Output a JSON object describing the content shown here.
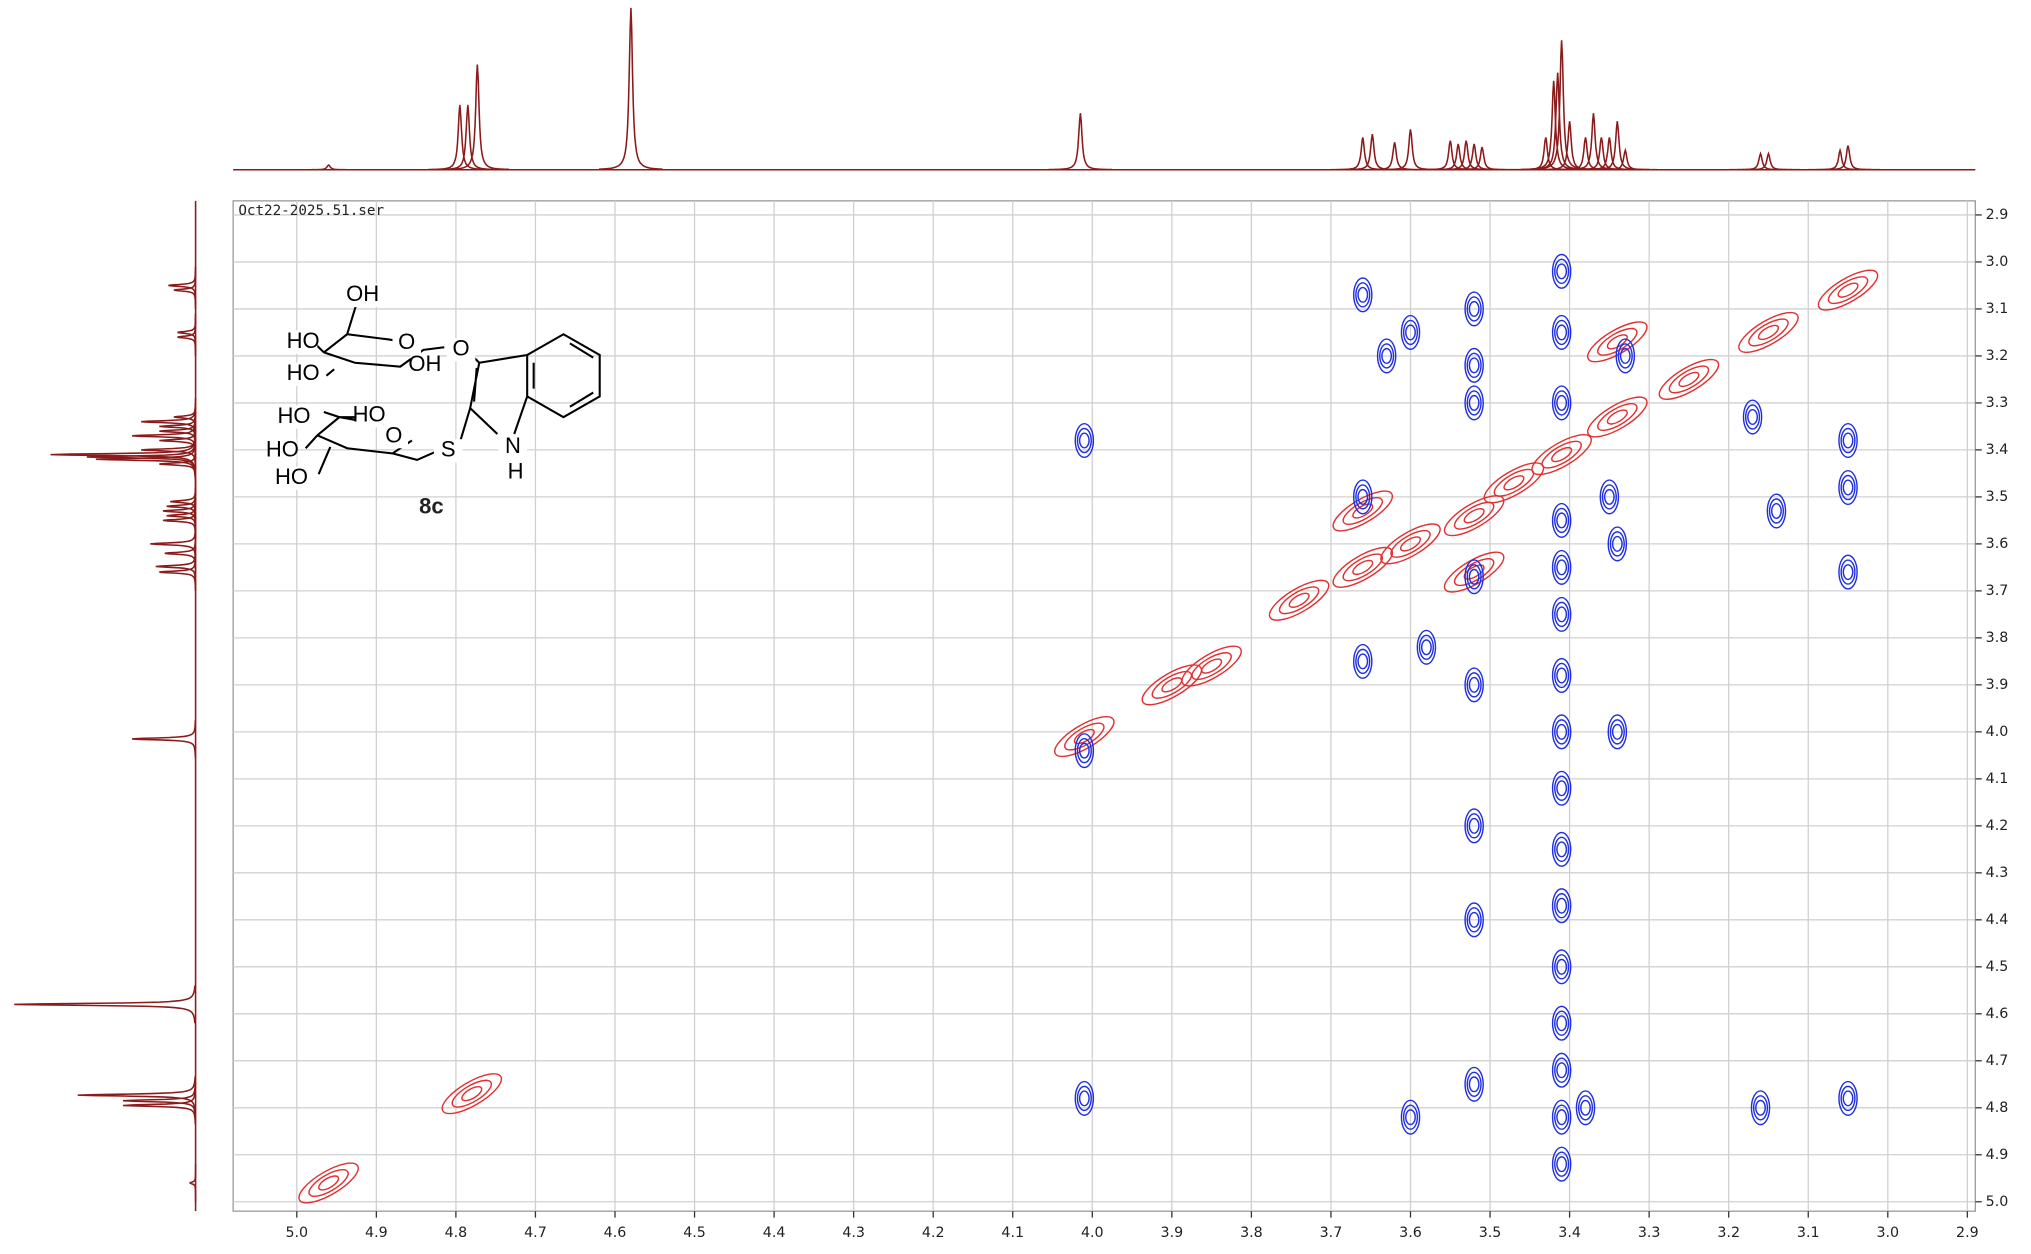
{
  "chart_data": {
    "type": "contour",
    "title": "Oct22-2025.51.ser",
    "xlim": [
      5.08,
      2.89
    ],
    "ylim": [
      2.87,
      5.02
    ],
    "xticks": [
      {
        "value": 5,
        "label": "5.0"
      },
      4.9,
      4.8,
      4.7,
      4.6,
      4.5,
      4.4,
      4.3,
      4.2,
      4.1,
      {
        "value": 4,
        "label": "4.0"
      },
      3.9,
      3.8,
      3.7,
      3.6,
      3.5,
      3.4,
      3.3,
      3.2,
      3.1,
      {
        "value": 3,
        "label": "3.0"
      },
      2.9
    ],
    "yticks": [
      2.9,
      {
        "value": 3,
        "label": "3.0"
      },
      3.1,
      3.2,
      3.3,
      3.4,
      3.5,
      3.6,
      3.7,
      3.8,
      3.9,
      {
        "value": 4,
        "label": "4.0"
      },
      4.1,
      4.2,
      4.3,
      4.4,
      4.5,
      4.6,
      4.7,
      4.8,
      4.9,
      {
        "value": 5,
        "label": "5.0"
      }
    ],
    "grid": true,
    "series": [
      {
        "color": "#e03030",
        "x": [
          3.05,
          3.15,
          3.25,
          3.34,
          3.41,
          3.47,
          3.52,
          3.6,
          3.66,
          3.74,
          3.85,
          3.9,
          4.01,
          4.78,
          4.96,
          3.52,
          3.66,
          3.34
        ],
        "y": [
          3.06,
          3.15,
          3.25,
          3.33,
          3.41,
          3.47,
          3.54,
          3.6,
          3.65,
          3.72,
          3.86,
          3.9,
          4.01,
          4.77,
          4.96,
          3.66,
          3.53,
          3.17
        ]
      },
      {
        "color": "#2030e0",
        "x": [
          3.66,
          3.6,
          3.52,
          3.52,
          3.52,
          3.63,
          3.17,
          3.05,
          3.05,
          3.14,
          3.05,
          4.01,
          3.33,
          3.35,
          3.34,
          3.34,
          3.52,
          3.66,
          3.52,
          3.52,
          3.52,
          3.52,
          3.6,
          4.01,
          3.16,
          3.05,
          3.38,
          3.58,
          3.66,
          4.01,
          3.41,
          3.41,
          3.41,
          3.41,
          3.41,
          3.41,
          3.41,
          3.41,
          3.41,
          3.41,
          3.41,
          3.41,
          3.41,
          3.41,
          3.41,
          3.41
        ],
        "y": [
          3.07,
          3.15,
          3.1,
          3.22,
          3.3,
          3.2,
          3.33,
          3.38,
          3.48,
          3.53,
          3.66,
          3.38,
          3.2,
          3.5,
          3.6,
          4.0,
          3.67,
          3.5,
          3.9,
          4.2,
          4.4,
          4.75,
          4.82,
          4.78,
          4.8,
          4.78,
          4.8,
          3.82,
          3.85,
          4.04,
          3.02,
          3.15,
          3.65,
          3.75,
          3.88,
          4.0,
          4.12,
          4.25,
          4.37,
          4.5,
          4.62,
          4.72,
          4.82,
          4.92,
          3.3,
          3.55
        ]
      }
    ],
    "projection": {
      "color": "#8b1a1a",
      "x": [
        4.96,
        4.795,
        4.785,
        4.773,
        4.58,
        4.015,
        3.66,
        3.648,
        3.62,
        3.6,
        3.55,
        3.54,
        3.53,
        3.52,
        3.51,
        3.43,
        3.42,
        3.415,
        3.41,
        3.4,
        3.38,
        3.37,
        3.36,
        3.35,
        3.34,
        3.33,
        3.16,
        3.15,
        3.06,
        3.05
      ],
      "values": [
        3,
        40,
        40,
        65,
        100,
        35,
        20,
        22,
        17,
        25,
        18,
        16,
        18,
        16,
        14,
        20,
        55,
        60,
        80,
        30,
        20,
        35,
        20,
        20,
        30,
        12,
        10,
        10,
        12,
        15
      ]
    }
  },
  "structure": {
    "labels": [
      "OH",
      "HO",
      "HO",
      "O",
      "OH",
      "O",
      "HO",
      "HO",
      "O",
      "HO",
      "HO",
      "S",
      "N",
      "H"
    ],
    "compound": "8c"
  }
}
